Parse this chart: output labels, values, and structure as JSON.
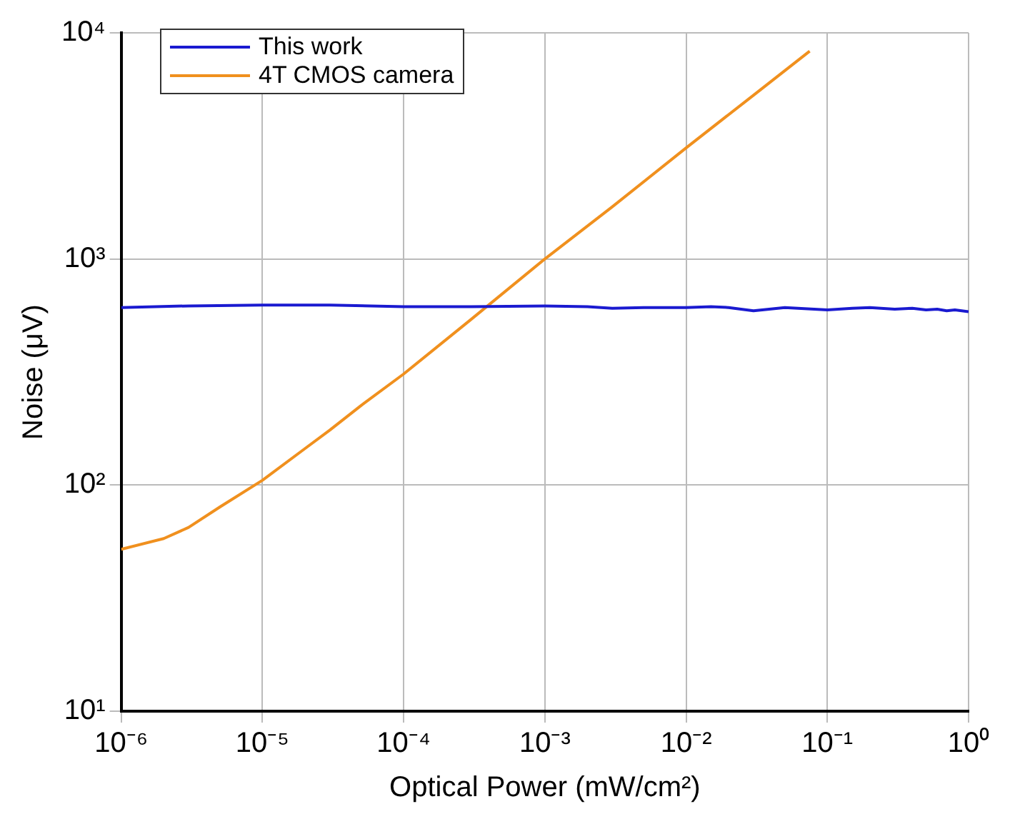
{
  "chart_data": {
    "type": "line",
    "xlabel": "Optical Power (mW/cm²)",
    "ylabel": "Noise (μV)",
    "log": "xy",
    "grid": true,
    "legend": "top left",
    "xlim": [
      1e-06,
      1
    ],
    "ylim": [
      10,
      10000
    ],
    "xticks": [
      {
        "value": 1e-06,
        "label": "10⁻⁶"
      },
      {
        "value": 1e-05,
        "label": "10⁻⁵"
      },
      {
        "value": 0.0001,
        "label": "10⁻⁴"
      },
      {
        "value": 0.001,
        "label": "10⁻³"
      },
      {
        "value": 0.01,
        "label": "10⁻²"
      },
      {
        "value": 0.1,
        "label": "10⁻¹"
      },
      {
        "value": 1,
        "label": "10⁰"
      }
    ],
    "yticks": [
      {
        "value": 10,
        "label": "10¹"
      },
      {
        "value": 100,
        "label": "10²"
      },
      {
        "value": 1000,
        "label": "10³"
      },
      {
        "value": 10000,
        "label": "10⁴"
      }
    ],
    "series": [
      {
        "name": "This work",
        "color": "#1a1ad0",
        "x": [
          1e-06,
          3e-06,
          1e-05,
          3e-05,
          0.0001,
          0.0003,
          0.001,
          0.002,
          0.003,
          0.005,
          0.01,
          0.015,
          0.02,
          0.03,
          0.05,
          0.1,
          0.15,
          0.2,
          0.3,
          0.4,
          0.5,
          0.6,
          0.7,
          0.8,
          1
        ],
        "values": [
          610,
          620,
          625,
          625,
          615,
          615,
          620,
          615,
          605,
          610,
          610,
          615,
          610,
          590,
          610,
          595,
          605,
          610,
          600,
          605,
          595,
          600,
          590,
          595,
          585
        ]
      },
      {
        "name": "4T CMOS camera",
        "color": "#f0901e",
        "x": [
          1e-06,
          2e-06,
          3e-06,
          5e-06,
          1e-05,
          2e-05,
          3e-05,
          5e-05,
          0.0001,
          0.0003,
          0.001,
          0.003,
          0.01,
          0.03,
          0.075
        ],
        "values": [
          52,
          58,
          65,
          80,
          105,
          145,
          175,
          225,
          310,
          540,
          1000,
          1700,
          3100,
          5300,
          8300
        ]
      }
    ]
  }
}
